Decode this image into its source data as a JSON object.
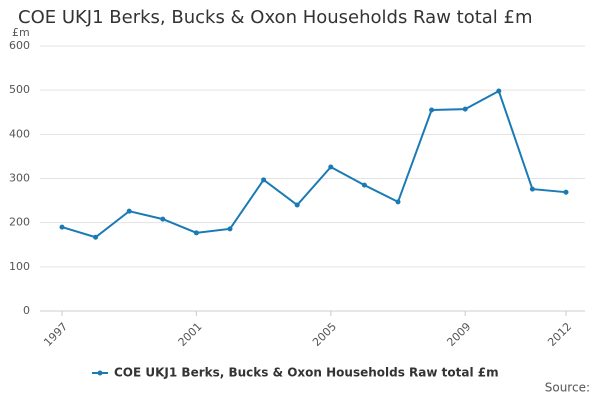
{
  "chart_data": {
    "type": "line",
    "title": "COE UKJ1 Berks, Bucks & Oxon Households Raw total £m",
    "y_label": "£m",
    "source": "Source:",
    "x": [
      1997,
      1998,
      1999,
      2000,
      2001,
      2002,
      2003,
      2004,
      2005,
      2006,
      2007,
      2008,
      2009,
      2010,
      2011,
      2012
    ],
    "series": [
      {
        "name": "COE UKJ1 Berks, Bucks & Oxon Households Raw total £m",
        "color": "#1a7ab5",
        "values": [
          190,
          167,
          226,
          208,
          177,
          186,
          297,
          240,
          326,
          285,
          247,
          455,
          457,
          498,
          276,
          269
        ]
      }
    ],
    "xlim": [
      1997,
      2012
    ],
    "xticks": [
      1997,
      2001,
      2005,
      2009,
      2012
    ],
    "ylim": [
      0,
      600
    ],
    "yticks": [
      0,
      100,
      200,
      300,
      400,
      500,
      600
    ],
    "grid": true,
    "legend": "bottom"
  }
}
